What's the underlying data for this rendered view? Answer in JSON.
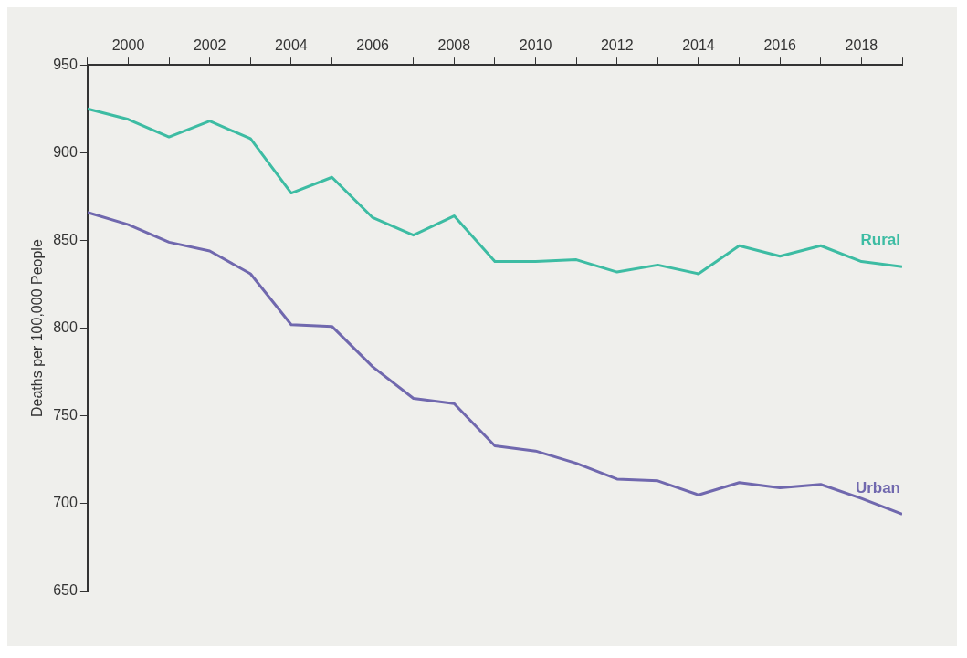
{
  "chart_data": {
    "type": "line",
    "ylabel": "Deaths per 100,000 People",
    "x": [
      1999,
      2000,
      2001,
      2002,
      2003,
      2004,
      2005,
      2006,
      2007,
      2008,
      2009,
      2010,
      2011,
      2012,
      2013,
      2014,
      2015,
      2016,
      2017,
      2018,
      2019
    ],
    "series": [
      {
        "name": "Rural",
        "color": "#3dbca3",
        "values": [
          925,
          919,
          909,
          918,
          908,
          877,
          886,
          863,
          853,
          864,
          838,
          838,
          839,
          832,
          836,
          831,
          847,
          841,
          847,
          838,
          835
        ]
      },
      {
        "name": "Urban",
        "color": "#7068ae",
        "values": [
          866,
          859,
          849,
          844,
          831,
          802,
          801,
          778,
          760,
          757,
          733,
          730,
          723,
          714,
          713,
          705,
          712,
          709,
          711,
          703,
          694
        ]
      }
    ],
    "xlim": [
      1999,
      2019
    ],
    "xticks": [
      {
        "value": 1999,
        "label": null
      },
      2000,
      {
        "value": 2001,
        "label": null
      },
      2002,
      {
        "value": 2003,
        "label": null
      },
      2004,
      {
        "value": 2005,
        "label": null
      },
      2006,
      {
        "value": 2007,
        "label": null
      },
      2008,
      {
        "value": 2009,
        "label": null
      },
      2010,
      {
        "value": 2011,
        "label": null
      },
      2012,
      {
        "value": 2013,
        "label": null
      },
      2014,
      {
        "value": 2015,
        "label": null
      },
      2016,
      {
        "value": 2017,
        "label": null
      },
      2018,
      {
        "value": 2019,
        "label": null
      }
    ],
    "ylim": [
      650,
      950
    ],
    "yticks": [
      650,
      700,
      750,
      800,
      850,
      900,
      950
    ],
    "grid": false,
    "legend": false,
    "marker": "none",
    "line_style": "solid"
  }
}
